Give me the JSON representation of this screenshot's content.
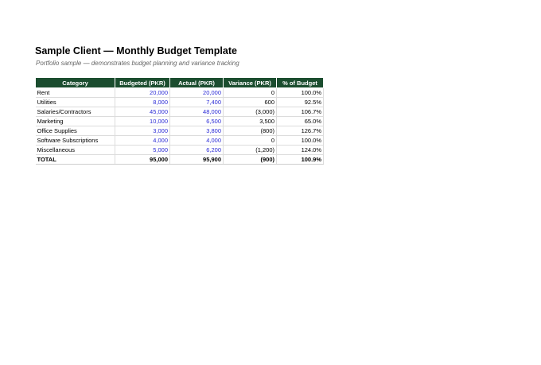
{
  "document": {
    "title": "Sample Client — Monthly Budget Template",
    "subtitle": "Portfolio sample — demonstrates budget planning and variance tracking"
  },
  "table": {
    "headers": [
      "Category",
      "Budgeted (PKR)",
      "Actual (PKR)",
      "Variance (PKR)",
      "% of Budget"
    ],
    "rows": [
      {
        "category": "Rent",
        "budgeted": "20,000",
        "actual": "20,000",
        "variance": "0",
        "percent": "100.0%"
      },
      {
        "category": "Utilities",
        "budgeted": "8,000",
        "actual": "7,400",
        "variance": "600",
        "percent": "92.5%"
      },
      {
        "category": "Salaries/Contractors",
        "budgeted": "45,000",
        "actual": "48,000",
        "variance": "(3,000)",
        "percent": "106.7%"
      },
      {
        "category": "Marketing",
        "budgeted": "10,000",
        "actual": "6,500",
        "variance": "3,500",
        "percent": "65.0%"
      },
      {
        "category": "Office Supplies",
        "budgeted": "3,000",
        "actual": "3,800",
        "variance": "(800)",
        "percent": "126.7%"
      },
      {
        "category": "Software Subscriptions",
        "budgeted": "4,000",
        "actual": "4,000",
        "variance": "0",
        "percent": "100.0%"
      },
      {
        "category": "Miscellaneous",
        "budgeted": "5,000",
        "actual": "6,200",
        "variance": "(1,200)",
        "percent": "124.0%"
      }
    ],
    "total": {
      "category": "TOTAL",
      "budgeted": "95,000",
      "actual": "95,900",
      "variance": "(900)",
      "percent": "100.9%"
    }
  },
  "colors": {
    "header_bg": "#1b4d2f",
    "header_text": "#ffffff",
    "input_value": "#2b2bd6"
  }
}
